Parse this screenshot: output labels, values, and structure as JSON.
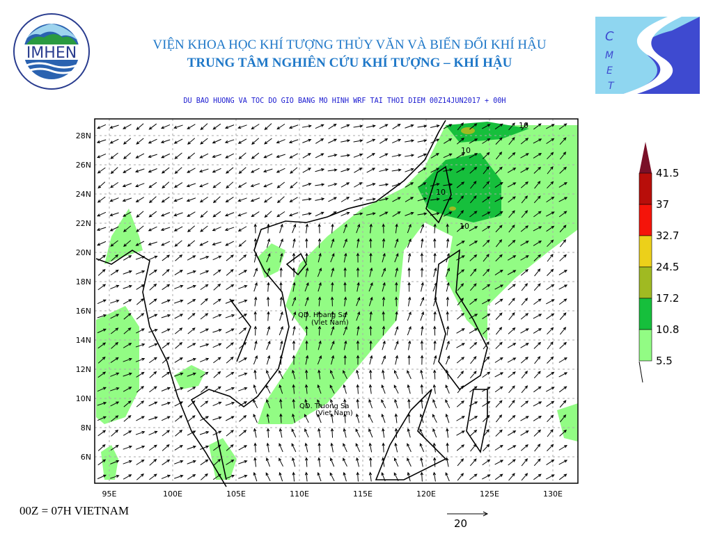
{
  "header": {
    "line1": "VIỆN KHOA HỌC KHÍ TƯỢNG THỦY VĂN VÀ BIẾN ĐỔI KHÍ HẬU",
    "line2": "TRUNG TÂM NGHIÊN CỨU KHÍ TƯỢNG – KHÍ HẬU",
    "subtitle": "DU BAO HUONG VA TOC DO GIO BANG MO HINH WRF TAI THOI DIEM  00Z14JUN2017 + 00H"
  },
  "logos": {
    "left": "IMHEN",
    "left_ring": "VIỆN KHOA HỌC KHÍ TƯỢNG THỦY VĂN VÀ BIẾN ĐỔI KHÍ HẬU",
    "right": "CMETC"
  },
  "map": {
    "lon_labels": [
      "95E",
      "100E",
      "105E",
      "110E",
      "115E",
      "120E",
      "125E",
      "130E"
    ],
    "lat_labels": [
      "28N",
      "26N",
      "24N",
      "22N",
      "20N",
      "18N",
      "16N",
      "14N",
      "12N",
      "10N",
      "8N",
      "6N"
    ],
    "annotations": [
      "QD. Hoang Sa",
      "(Viet Nam)",
      "QD. Truong Sa",
      "(Viet Nam)"
    ],
    "contour_labels": [
      "10",
      "10",
      "10",
      "10"
    ]
  },
  "legend": {
    "levels": [
      "41.5",
      "37",
      "32.7",
      "24.5",
      "17.2",
      "10.8",
      "5.5"
    ],
    "colors": [
      "#7a1028",
      "#b80e0a",
      "#f5140a",
      "#ecd01a",
      "#a0ba22",
      "#16bf3c",
      "#92fc84"
    ]
  },
  "footer": {
    "time_note": "00Z = 07H VIETNAM",
    "ref_vector": "20"
  }
}
